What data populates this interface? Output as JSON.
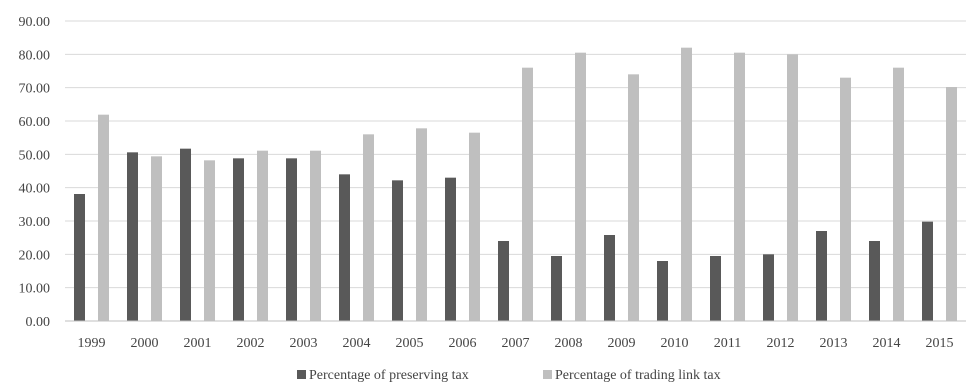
{
  "chart_data": {
    "type": "bar",
    "title": "",
    "xlabel": "",
    "ylabel": "",
    "ylim": [
      0,
      90
    ],
    "yticks": [
      "0.00",
      "10.00",
      "20.00",
      "30.00",
      "40.00",
      "50.00",
      "60.00",
      "70.00",
      "80.00",
      "90.00"
    ],
    "grid": true,
    "legend_position": "bottom-center",
    "categories": [
      "1999",
      "2000",
      "2001",
      "2002",
      "2003",
      "2004",
      "2005",
      "2006",
      "2007",
      "2008",
      "2009",
      "2010",
      "2011",
      "2012",
      "2013",
      "2014",
      "2015"
    ],
    "series": [
      {
        "name": "Percentage of preserving tax",
        "color": "#595959",
        "values": [
          38.1,
          50.6,
          51.7,
          48.8,
          48.8,
          44.0,
          42.2,
          43.0,
          24.0,
          19.5,
          25.8,
          18.0,
          19.5,
          20.0,
          27.0,
          24.0,
          29.8
        ]
      },
      {
        "name": "Percentage of trading link tax",
        "color": "#bfbfbf",
        "values": [
          61.9,
          49.4,
          48.2,
          51.1,
          51.1,
          56.0,
          57.8,
          56.5,
          76.0,
          80.5,
          74.0,
          82.0,
          80.5,
          80.0,
          73.0,
          76.0,
          70.2
        ]
      }
    ]
  }
}
